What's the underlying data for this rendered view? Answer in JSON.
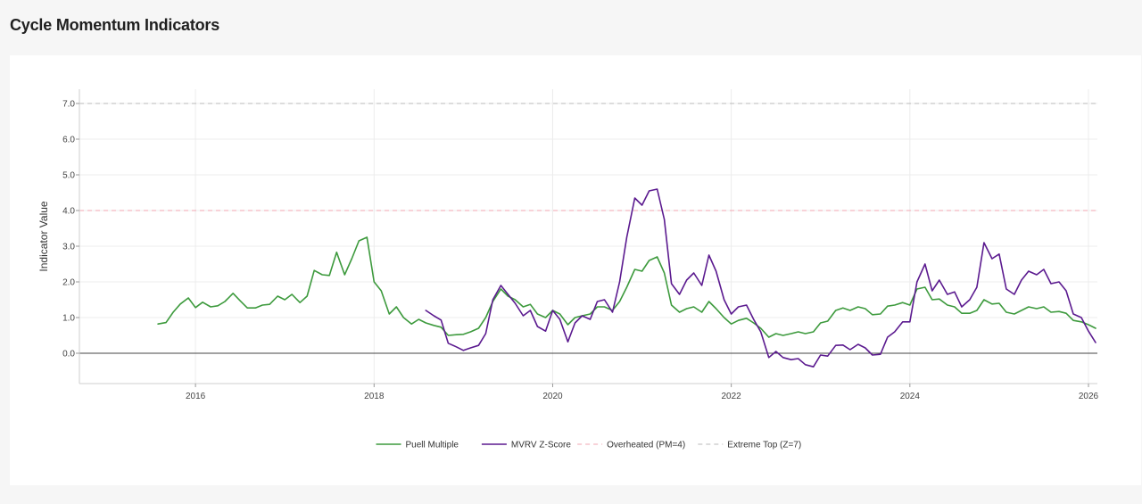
{
  "page": {
    "title": "Cycle Momentum Indicators"
  },
  "colors": {
    "puell": "#3d9a3d",
    "mvrv": "#5b1a8f",
    "overheated": "#f2a6b2",
    "extreme": "#b8b8b8",
    "zero_line": "#444444",
    "grid": "#ececec",
    "tick_text": "#444444"
  },
  "chart_data": {
    "type": "line",
    "ylabel": "Indicator Value",
    "xlabel": "",
    "xlim": [
      2014.7,
      2026.1
    ],
    "ylim": [
      -0.85,
      7.4
    ],
    "grid": true,
    "legend_position": "bottom-center",
    "x_ticks": [
      {
        "value": 2016,
        "label": "2016"
      },
      {
        "value": 2018,
        "label": "2018"
      },
      {
        "value": 2020,
        "label": "2020"
      },
      {
        "value": 2022,
        "label": "2022"
      },
      {
        "value": 2024,
        "label": "2024"
      },
      {
        "value": 2026,
        "label": "2026"
      }
    ],
    "y_ticks": [
      {
        "value": 0,
        "label": "0.0"
      },
      {
        "value": 1,
        "label": "1.0"
      },
      {
        "value": 2,
        "label": "2.0"
      },
      {
        "value": 3,
        "label": "3.0"
      },
      {
        "value": 4,
        "label": "4.0"
      },
      {
        "value": 5,
        "label": "5.0"
      },
      {
        "value": 6,
        "label": "6.0"
      },
      {
        "value": 7,
        "label": "7.0"
      }
    ],
    "series": [
      {
        "name": "Puell Multiple",
        "color": "#3d9a3d",
        "x": [
          2015.58,
          2015.67,
          2015.75,
          2015.83,
          2015.92,
          2016.0,
          2016.08,
          2016.17,
          2016.25,
          2016.33,
          2016.42,
          2016.5,
          2016.58,
          2016.67,
          2016.75,
          2016.83,
          2016.92,
          2017.0,
          2017.08,
          2017.17,
          2017.25,
          2017.33,
          2017.42,
          2017.5,
          2017.58,
          2017.67,
          2017.75,
          2017.83,
          2017.92,
          2018.0,
          2018.08,
          2018.17,
          2018.25,
          2018.33,
          2018.42,
          2018.5,
          2018.58,
          2018.67,
          2018.75,
          2018.83,
          2018.92,
          2019.0,
          2019.08,
          2019.17,
          2019.25,
          2019.33,
          2019.42,
          2019.5,
          2019.58,
          2019.67,
          2019.75,
          2019.83,
          2019.92,
          2020.0,
          2020.08,
          2020.17,
          2020.25,
          2020.33,
          2020.42,
          2020.5,
          2020.58,
          2020.67,
          2020.75,
          2020.83,
          2020.92,
          2021.0,
          2021.08,
          2021.17,
          2021.25,
          2021.33,
          2021.42,
          2021.5,
          2021.58,
          2021.67,
          2021.75,
          2021.83,
          2021.92,
          2022.0,
          2022.08,
          2022.17,
          2022.25,
          2022.33,
          2022.42,
          2022.5,
          2022.58,
          2022.67,
          2022.75,
          2022.83,
          2022.92,
          2023.0,
          2023.08,
          2023.17,
          2023.25,
          2023.33,
          2023.42,
          2023.5,
          2023.58,
          2023.67,
          2023.75,
          2023.83,
          2023.92,
          2024.0,
          2024.08,
          2024.17,
          2024.25,
          2024.33,
          2024.42,
          2024.5,
          2024.58,
          2024.67,
          2024.75,
          2024.83,
          2024.92,
          2025.0,
          2025.08,
          2025.17,
          2025.25,
          2025.33,
          2025.42,
          2025.5,
          2025.58,
          2025.67,
          2025.75,
          2025.83,
          2025.92,
          2026.0,
          2026.08
        ],
        "y": [
          0.82,
          0.86,
          1.15,
          1.38,
          1.55,
          1.28,
          1.43,
          1.3,
          1.33,
          1.45,
          1.68,
          1.47,
          1.27,
          1.27,
          1.35,
          1.37,
          1.6,
          1.5,
          1.65,
          1.42,
          1.6,
          2.32,
          2.2,
          2.18,
          2.83,
          2.2,
          2.65,
          3.15,
          3.25,
          2.0,
          1.75,
          1.1,
          1.3,
          1.0,
          0.82,
          0.95,
          0.85,
          0.78,
          0.73,
          0.5,
          0.52,
          0.53,
          0.6,
          0.7,
          1.0,
          1.45,
          1.8,
          1.6,
          1.5,
          1.3,
          1.37,
          1.1,
          1.0,
          1.2,
          1.1,
          0.8,
          1.0,
          1.05,
          1.1,
          1.3,
          1.3,
          1.2,
          1.45,
          1.85,
          2.35,
          2.3,
          2.6,
          2.7,
          2.25,
          1.35,
          1.15,
          1.25,
          1.3,
          1.15,
          1.45,
          1.25,
          1.0,
          0.82,
          0.92,
          0.98,
          0.85,
          0.7,
          0.45,
          0.55,
          0.5,
          0.55,
          0.6,
          0.55,
          0.6,
          0.85,
          0.9,
          1.2,
          1.27,
          1.2,
          1.3,
          1.25,
          1.08,
          1.1,
          1.32,
          1.35,
          1.42,
          1.35,
          1.8,
          1.85,
          1.5,
          1.52,
          1.35,
          1.3,
          1.12,
          1.12,
          1.2,
          1.5,
          1.38,
          1.4,
          1.15,
          1.1,
          1.2,
          1.3,
          1.25,
          1.3,
          1.15,
          1.17,
          1.12,
          0.92,
          0.88,
          0.8,
          0.7
        ]
      },
      {
        "name": "MVRV Z-Score",
        "color": "#5b1a8f",
        "x": [
          2018.58,
          2018.67,
          2018.75,
          2018.83,
          2018.92,
          2019.0,
          2019.08,
          2019.17,
          2019.25,
          2019.33,
          2019.42,
          2019.5,
          2019.58,
          2019.67,
          2019.75,
          2019.83,
          2019.92,
          2020.0,
          2020.08,
          2020.17,
          2020.25,
          2020.33,
          2020.42,
          2020.5,
          2020.58,
          2020.67,
          2020.75,
          2020.83,
          2020.92,
          2021.0,
          2021.08,
          2021.17,
          2021.25,
          2021.33,
          2021.42,
          2021.5,
          2021.58,
          2021.67,
          2021.75,
          2021.83,
          2021.92,
          2022.0,
          2022.08,
          2022.17,
          2022.25,
          2022.33,
          2022.42,
          2022.5,
          2022.58,
          2022.67,
          2022.75,
          2022.83,
          2022.92,
          2023.0,
          2023.08,
          2023.17,
          2023.25,
          2023.33,
          2023.42,
          2023.5,
          2023.58,
          2023.67,
          2023.75,
          2023.83,
          2023.92,
          2024.0,
          2024.08,
          2024.17,
          2024.25,
          2024.33,
          2024.42,
          2024.5,
          2024.58,
          2024.67,
          2024.75,
          2024.83,
          2024.92,
          2025.0,
          2025.08,
          2025.17,
          2025.25,
          2025.33,
          2025.42,
          2025.5,
          2025.58,
          2025.67,
          2025.75,
          2025.83,
          2025.92,
          2026.0,
          2026.08
        ],
        "y": [
          1.2,
          1.05,
          0.93,
          0.28,
          0.18,
          0.08,
          0.15,
          0.22,
          0.55,
          1.5,
          1.9,
          1.65,
          1.4,
          1.05,
          1.2,
          0.75,
          0.62,
          1.2,
          0.95,
          0.32,
          0.85,
          1.05,
          0.95,
          1.45,
          1.5,
          1.15,
          2.0,
          3.25,
          4.35,
          4.15,
          4.55,
          4.6,
          3.75,
          1.95,
          1.65,
          2.05,
          2.25,
          1.9,
          2.75,
          2.3,
          1.5,
          1.1,
          1.3,
          1.35,
          0.95,
          0.6,
          -0.12,
          0.05,
          -0.12,
          -0.18,
          -0.15,
          -0.32,
          -0.38,
          -0.05,
          -0.08,
          0.22,
          0.23,
          0.1,
          0.25,
          0.15,
          -0.05,
          -0.03,
          0.45,
          0.6,
          0.88,
          0.88,
          2.0,
          2.5,
          1.75,
          2.05,
          1.65,
          1.72,
          1.3,
          1.5,
          1.85,
          3.1,
          2.65,
          2.78,
          1.8,
          1.65,
          2.05,
          2.3,
          2.2,
          2.35,
          1.95,
          2.0,
          1.75,
          1.1,
          1.0,
          0.62,
          0.3
        ]
      }
    ],
    "reference_lines": [
      {
        "name": "Overheated (PM=4)",
        "value": 4,
        "color": "#f2a6b2",
        "style": "dashed"
      },
      {
        "name": "Extreme Top (Z=7)",
        "value": 7,
        "color": "#b8b8b8",
        "style": "dashed"
      },
      {
        "name": "",
        "value": 0,
        "color": "#444444",
        "style": "solid"
      }
    ],
    "legend": [
      {
        "label": "Puell Multiple",
        "color": "#3d9a3d",
        "style": "solid"
      },
      {
        "label": "MVRV Z-Score",
        "color": "#5b1a8f",
        "style": "solid"
      },
      {
        "label": "Overheated (PM=4)",
        "color": "#f2a6b2",
        "style": "dashed"
      },
      {
        "label": "Extreme Top (Z=7)",
        "color": "#b8b8b8",
        "style": "dashed"
      }
    ]
  }
}
